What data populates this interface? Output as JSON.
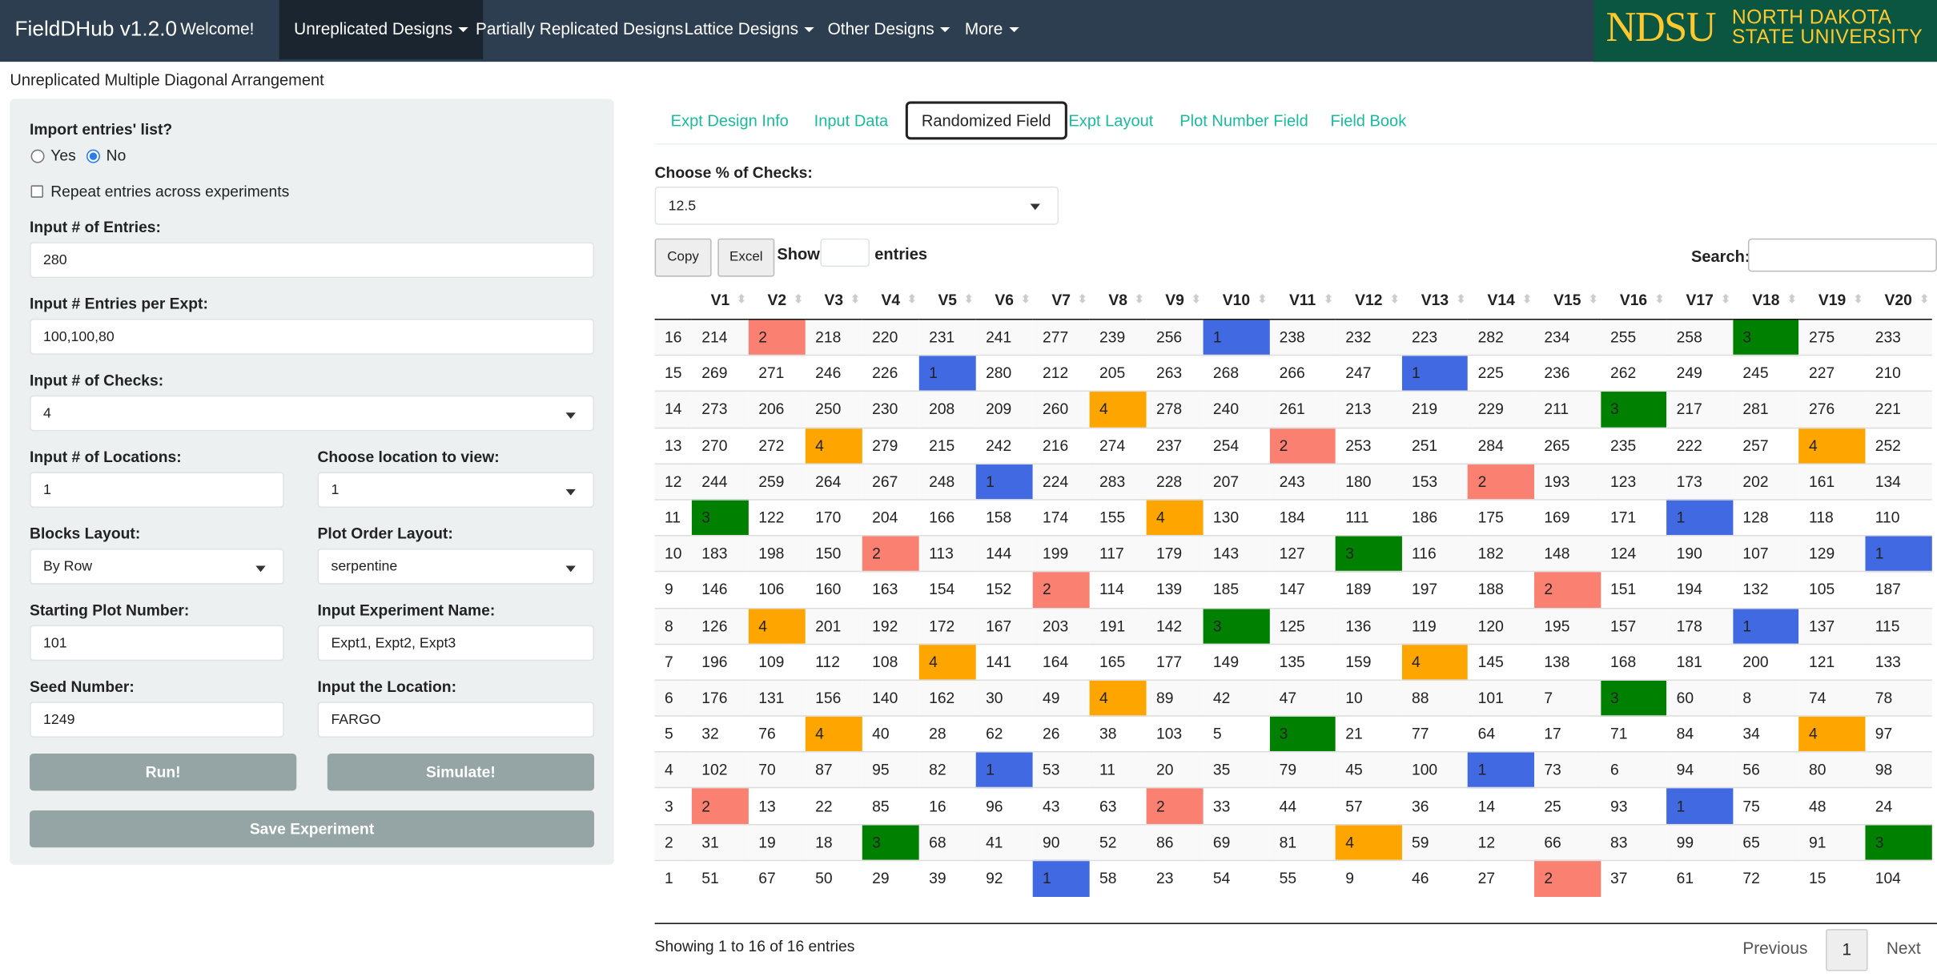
{
  "navbar": {
    "brand": "FieldDHub v1.2.0",
    "items": [
      "Welcome!",
      "Unreplicated Designs",
      "Partially Replicated Designs",
      "Lattice Designs",
      "Other Designs",
      "More"
    ],
    "active_item": 1,
    "logo": {
      "abbr": "NDSU",
      "line1": "NORTH DAKOTA",
      "line2": "STATE UNIVERSITY"
    }
  },
  "page_title": "Unreplicated Multiple Diagonal Arrangement",
  "sidebar": {
    "import_label": "Import entries' list?",
    "import_options": [
      "Yes",
      "No"
    ],
    "import_selected": 1,
    "repeat_label": "Repeat entries across experiments",
    "entries_label": "Input # of Entries:",
    "entries_value": "280",
    "per_expt_label": "Input # Entries per Expt:",
    "per_expt_value": "100,100,80",
    "checks_label": "Input # of Checks:",
    "checks_value": "4",
    "locations_label": "Input # of Locations:",
    "locations_value": "1",
    "view_location_label": "Choose location to view:",
    "view_location_value": "1",
    "blocks_label": "Blocks Layout:",
    "blocks_value": "By Row",
    "plot_order_label": "Plot Order Layout:",
    "plot_order_value": "serpentine",
    "start_plot_label": "Starting Plot Number:",
    "start_plot_value": "101",
    "expt_name_label": "Input Experiment Name:",
    "expt_name_value": "Expt1, Expt2, Expt3",
    "seed_label": "Seed Number:",
    "seed_value": "1249",
    "location_label": "Input the Location:",
    "location_value": "FARGO",
    "run_button": "Run!",
    "simulate_button": "Simulate!",
    "save_button": "Save Experiment"
  },
  "tabs": [
    "Expt Design Info",
    "Input Data",
    "Randomized Field",
    "Expt Layout",
    "Plot Number Field",
    "Field Book"
  ],
  "active_tab": 2,
  "checks_pct_label": "Choose % of Checks:",
  "checks_pct_value": "12.5",
  "copy_button": "Copy",
  "excel_button": "Excel",
  "show_label": "Show",
  "entries_label": "entries",
  "search_label": "Search:",
  "check_colors": {
    "1": "#4169e1",
    "2": "#fa8072",
    "3": "#008000",
    "4": "#ffa500"
  },
  "table": {
    "columns": [
      "V1",
      "V2",
      "V3",
      "V4",
      "V5",
      "V6",
      "V7",
      "V8",
      "V9",
      "V10",
      "V11",
      "V12",
      "V13",
      "V14",
      "V15",
      "V16",
      "V17",
      "V18",
      "V19",
      "V20"
    ],
    "rows": [
      {
        "label": 16,
        "cells": [
          214,
          2,
          218,
          220,
          231,
          241,
          277,
          239,
          256,
          1,
          238,
          232,
          223,
          282,
          234,
          255,
          258,
          3,
          275,
          233
        ]
      },
      {
        "label": 15,
        "cells": [
          269,
          271,
          246,
          226,
          1,
          280,
          212,
          205,
          263,
          268,
          266,
          247,
          1,
          225,
          236,
          262,
          249,
          245,
          227,
          210
        ]
      },
      {
        "label": 14,
        "cells": [
          273,
          206,
          250,
          230,
          208,
          209,
          260,
          4,
          278,
          240,
          261,
          213,
          219,
          229,
          211,
          3,
          217,
          281,
          276,
          221
        ]
      },
      {
        "label": 13,
        "cells": [
          270,
          272,
          4,
          279,
          215,
          242,
          216,
          274,
          237,
          254,
          2,
          253,
          251,
          284,
          265,
          235,
          222,
          257,
          4,
          252
        ]
      },
      {
        "label": 12,
        "cells": [
          244,
          259,
          264,
          267,
          248,
          1,
          224,
          283,
          228,
          207,
          243,
          180,
          153,
          2,
          193,
          123,
          173,
          202,
          161,
          134
        ]
      },
      {
        "label": 11,
        "cells": [
          3,
          122,
          170,
          204,
          166,
          158,
          174,
          155,
          4,
          130,
          184,
          111,
          186,
          175,
          169,
          171,
          1,
          128,
          118,
          110
        ]
      },
      {
        "label": 10,
        "cells": [
          183,
          198,
          150,
          2,
          113,
          144,
          199,
          117,
          179,
          143,
          127,
          3,
          116,
          182,
          148,
          124,
          190,
          107,
          129,
          1
        ]
      },
      {
        "label": 9,
        "cells": [
          146,
          106,
          160,
          163,
          154,
          152,
          2,
          114,
          139,
          185,
          147,
          189,
          197,
          188,
          2,
          151,
          194,
          132,
          105,
          187
        ]
      },
      {
        "label": 8,
        "cells": [
          126,
          4,
          201,
          192,
          172,
          167,
          203,
          191,
          142,
          3,
          125,
          136,
          119,
          120,
          195,
          157,
          178,
          1,
          137,
          115
        ]
      },
      {
        "label": 7,
        "cells": [
          196,
          109,
          112,
          108,
          4,
          141,
          164,
          165,
          177,
          149,
          135,
          159,
          4,
          145,
          138,
          168,
          181,
          200,
          121,
          133
        ]
      },
      {
        "label": 6,
        "cells": [
          176,
          131,
          156,
          140,
          162,
          30,
          49,
          4,
          89,
          42,
          47,
          10,
          88,
          101,
          7,
          3,
          60,
          8,
          74,
          78
        ]
      },
      {
        "label": 5,
        "cells": [
          32,
          76,
          4,
          40,
          28,
          62,
          26,
          38,
          103,
          5,
          3,
          21,
          77,
          64,
          17,
          71,
          84,
          34,
          4,
          97
        ]
      },
      {
        "label": 4,
        "cells": [
          102,
          70,
          87,
          95,
          82,
          1,
          53,
          11,
          20,
          35,
          79,
          45,
          100,
          1,
          73,
          6,
          94,
          56,
          80,
          98
        ]
      },
      {
        "label": 3,
        "cells": [
          2,
          13,
          22,
          85,
          16,
          96,
          43,
          63,
          2,
          33,
          44,
          57,
          36,
          14,
          25,
          93,
          1,
          75,
          48,
          24
        ]
      },
      {
        "label": 2,
        "cells": [
          31,
          19,
          18,
          3,
          68,
          41,
          90,
          52,
          86,
          69,
          81,
          4,
          59,
          12,
          66,
          83,
          99,
          65,
          91,
          3
        ]
      },
      {
        "label": 1,
        "cells": [
          51,
          67,
          50,
          29,
          39,
          92,
          1,
          58,
          23,
          54,
          55,
          9,
          46,
          27,
          2,
          37,
          61,
          72,
          15,
          104
        ]
      }
    ]
  },
  "table_info": "Showing 1 to 16 of 16 entries",
  "pagination": {
    "previous": "Previous",
    "page": "1",
    "next": "Next"
  }
}
